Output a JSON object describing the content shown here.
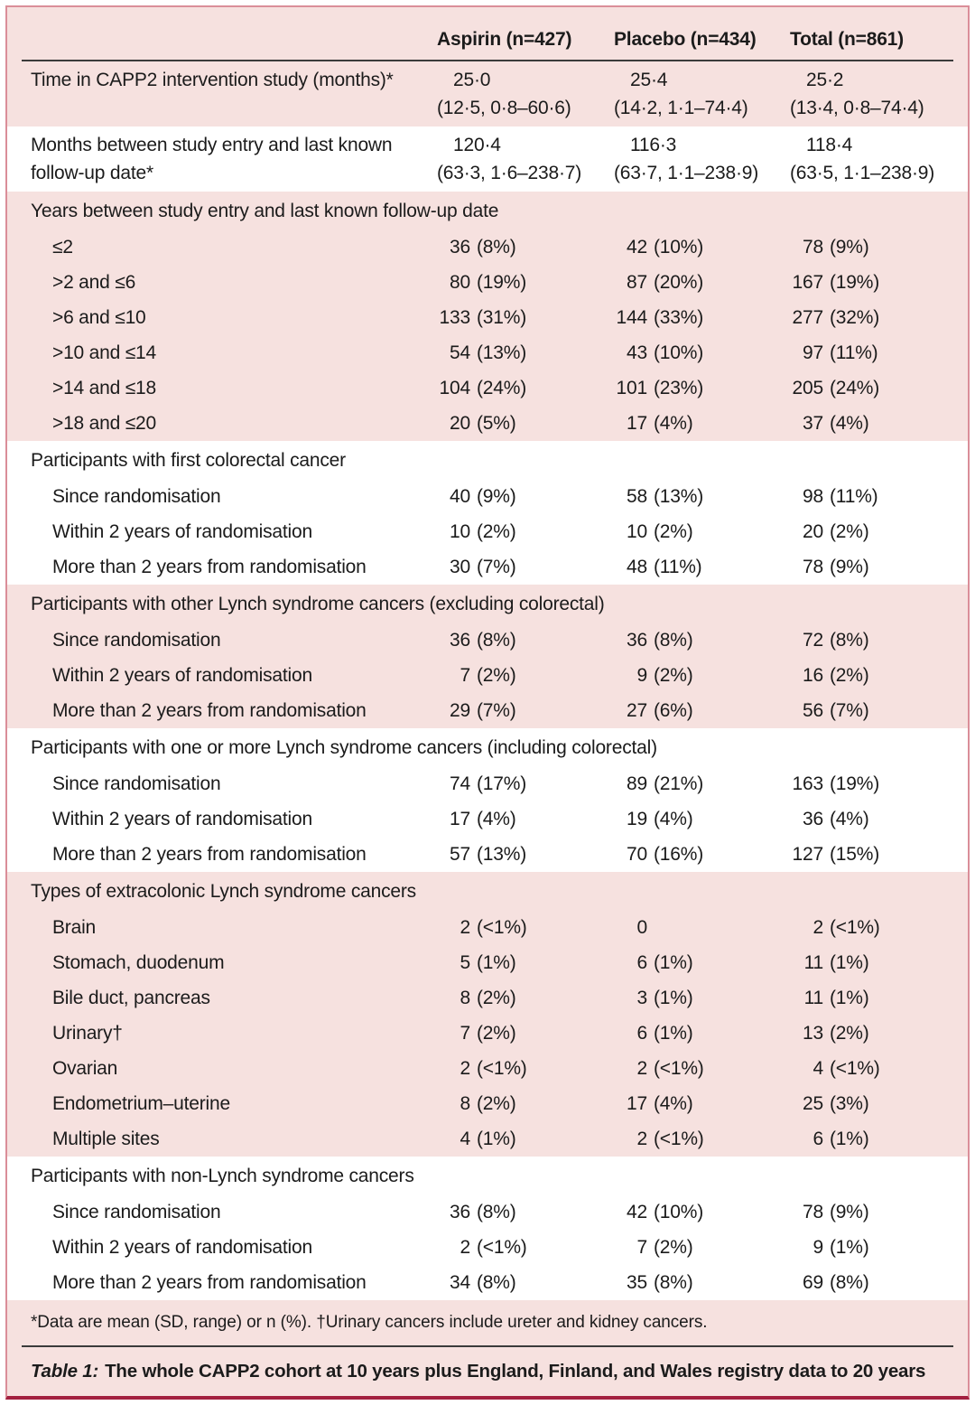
{
  "colors": {
    "table_background_pink": "#f6e1df",
    "row_band_white": "#ffffff",
    "outer_border_pink": "#da8e99",
    "bottom_accent_maroon": "#a3203f",
    "rule_dark": "#3b3b3b",
    "text": "#1b1b1b"
  },
  "table": {
    "columns": {
      "aspirin": "Aspirin (n=427)",
      "placebo": "Placebo (n=434)",
      "total": "Total (n=861)"
    },
    "rows": [
      {
        "kind": "measure",
        "shade": "pink",
        "label": "Time in CAPP2 intervention study (months)*",
        "cells": [
          {
            "num": "25·0",
            "rest": "(12·5, 0·8–60·6)"
          },
          {
            "num": "25·4",
            "rest": "(14·2, 1·1–74·4)"
          },
          {
            "num": "25·2",
            "rest": "(13·4, 0·8–74·4)"
          }
        ]
      },
      {
        "kind": "measure",
        "shade": "white",
        "label": "Months between study entry and last known follow-up date*",
        "cells": [
          {
            "num": "120·4",
            "rest": "(63·3, 1·6–238·7)"
          },
          {
            "num": "116·3",
            "rest": "(63·7, 1·1–238·9)"
          },
          {
            "num": "118·4",
            "rest": "(63·5, 1·1–238·9)"
          }
        ]
      },
      {
        "kind": "section",
        "shade": "pink",
        "label": "Years between study entry and last known follow-up date"
      },
      {
        "kind": "item",
        "shade": "pink",
        "label": "≤2",
        "cells": [
          {
            "num": "36",
            "rest": "(8%)"
          },
          {
            "num": "42",
            "rest": "(10%)"
          },
          {
            "num": "78",
            "rest": "(9%)"
          }
        ]
      },
      {
        "kind": "item",
        "shade": "pink",
        "label": ">2 and ≤6",
        "cells": [
          {
            "num": "80",
            "rest": "(19%)"
          },
          {
            "num": "87",
            "rest": "(20%)"
          },
          {
            "num": "167",
            "rest": "(19%)"
          }
        ]
      },
      {
        "kind": "item",
        "shade": "pink",
        "label": ">6 and ≤10",
        "cells": [
          {
            "num": "133",
            "rest": "(31%)"
          },
          {
            "num": "144",
            "rest": "(33%)"
          },
          {
            "num": "277",
            "rest": "(32%)"
          }
        ]
      },
      {
        "kind": "item",
        "shade": "pink",
        "label": ">10 and ≤14",
        "cells": [
          {
            "num": "54",
            "rest": "(13%)"
          },
          {
            "num": "43",
            "rest": "(10%)"
          },
          {
            "num": "97",
            "rest": "(11%)"
          }
        ]
      },
      {
        "kind": "item",
        "shade": "pink",
        "label": ">14 and ≤18",
        "cells": [
          {
            "num": "104",
            "rest": "(24%)"
          },
          {
            "num": "101",
            "rest": "(23%)"
          },
          {
            "num": "205",
            "rest": "(24%)"
          }
        ]
      },
      {
        "kind": "item",
        "shade": "pink",
        "label": ">18 and ≤20",
        "cells": [
          {
            "num": "20",
            "rest": "(5%)"
          },
          {
            "num": "17",
            "rest": "(4%)"
          },
          {
            "num": "37",
            "rest": "(4%)"
          }
        ]
      },
      {
        "kind": "section",
        "shade": "white",
        "label": "Participants with first colorectal cancer"
      },
      {
        "kind": "item",
        "shade": "white",
        "label": "Since randomisation",
        "cells": [
          {
            "num": "40",
            "rest": "(9%)"
          },
          {
            "num": "58",
            "rest": "(13%)"
          },
          {
            "num": "98",
            "rest": "(11%)"
          }
        ]
      },
      {
        "kind": "item",
        "shade": "white",
        "label": "Within 2 years of randomisation",
        "cells": [
          {
            "num": "10",
            "rest": "(2%)"
          },
          {
            "num": "10",
            "rest": "(2%)"
          },
          {
            "num": "20",
            "rest": "(2%)"
          }
        ]
      },
      {
        "kind": "item",
        "shade": "white",
        "label": "More than 2 years from randomisation",
        "cells": [
          {
            "num": "30",
            "rest": "(7%)"
          },
          {
            "num": "48",
            "rest": "(11%)"
          },
          {
            "num": "78",
            "rest": "(9%)"
          }
        ]
      },
      {
        "kind": "section",
        "shade": "pink",
        "label": "Participants with other Lynch syndrome cancers (excluding colorectal)"
      },
      {
        "kind": "item",
        "shade": "pink",
        "label": "Since randomisation",
        "cells": [
          {
            "num": "36",
            "rest": "(8%)"
          },
          {
            "num": "36",
            "rest": "(8%)"
          },
          {
            "num": "72",
            "rest": "(8%)"
          }
        ]
      },
      {
        "kind": "item",
        "shade": "pink",
        "label": "Within 2 years of randomisation",
        "cells": [
          {
            "num": "7",
            "rest": "(2%)"
          },
          {
            "num": "9",
            "rest": "(2%)"
          },
          {
            "num": "16",
            "rest": "(2%)"
          }
        ]
      },
      {
        "kind": "item",
        "shade": "pink",
        "label": "More than 2 years from randomisation",
        "cells": [
          {
            "num": "29",
            "rest": "(7%)"
          },
          {
            "num": "27",
            "rest": "(6%)"
          },
          {
            "num": "56",
            "rest": "(7%)"
          }
        ]
      },
      {
        "kind": "section",
        "shade": "white",
        "label": "Participants with one or more Lynch syndrome cancers (including colorectal)"
      },
      {
        "kind": "item",
        "shade": "white",
        "label": "Since randomisation",
        "cells": [
          {
            "num": "74",
            "rest": "(17%)"
          },
          {
            "num": "89",
            "rest": "(21%)"
          },
          {
            "num": "163",
            "rest": "(19%)"
          }
        ]
      },
      {
        "kind": "item",
        "shade": "white",
        "label": "Within 2 years of randomisation",
        "cells": [
          {
            "num": "17",
            "rest": "(4%)"
          },
          {
            "num": "19",
            "rest": "(4%)"
          },
          {
            "num": "36",
            "rest": "(4%)"
          }
        ]
      },
      {
        "kind": "item",
        "shade": "white",
        "label": "More than 2 years from randomisation",
        "cells": [
          {
            "num": "57",
            "rest": "(13%)"
          },
          {
            "num": "70",
            "rest": "(16%)"
          },
          {
            "num": "127",
            "rest": "(15%)"
          }
        ]
      },
      {
        "kind": "section",
        "shade": "pink",
        "label": "Types of extracolonic Lynch syndrome cancers"
      },
      {
        "kind": "item",
        "shade": "pink",
        "label": "Brain",
        "cells": [
          {
            "num": "2",
            "rest": "(<1%)"
          },
          {
            "num": "0",
            "rest": ""
          },
          {
            "num": "2",
            "rest": "(<1%)"
          }
        ]
      },
      {
        "kind": "item",
        "shade": "pink",
        "label": "Stomach, duodenum",
        "cells": [
          {
            "num": "5",
            "rest": "(1%)"
          },
          {
            "num": "6",
            "rest": "(1%)"
          },
          {
            "num": "11",
            "rest": "(1%)"
          }
        ]
      },
      {
        "kind": "item",
        "shade": "pink",
        "label": "Bile duct, pancreas",
        "cells": [
          {
            "num": "8",
            "rest": "(2%)"
          },
          {
            "num": "3",
            "rest": "(1%)"
          },
          {
            "num": "11",
            "rest": "(1%)"
          }
        ]
      },
      {
        "kind": "item",
        "shade": "pink",
        "label": "Urinary†",
        "cells": [
          {
            "num": "7",
            "rest": "(2%)"
          },
          {
            "num": "6",
            "rest": "(1%)"
          },
          {
            "num": "13",
            "rest": "(2%)"
          }
        ]
      },
      {
        "kind": "item",
        "shade": "pink",
        "label": "Ovarian",
        "cells": [
          {
            "num": "2",
            "rest": "(<1%)"
          },
          {
            "num": "2",
            "rest": "(<1%)"
          },
          {
            "num": "4",
            "rest": "(<1%)"
          }
        ]
      },
      {
        "kind": "item",
        "shade": "pink",
        "label": "Endometrium–uterine",
        "cells": [
          {
            "num": "8",
            "rest": "(2%)"
          },
          {
            "num": "17",
            "rest": "(4%)"
          },
          {
            "num": "25",
            "rest": "(3%)"
          }
        ]
      },
      {
        "kind": "item",
        "shade": "pink",
        "label": "Multiple sites",
        "cells": [
          {
            "num": "4",
            "rest": "(1%)"
          },
          {
            "num": "2",
            "rest": "(<1%)"
          },
          {
            "num": "6",
            "rest": "(1%)"
          }
        ]
      },
      {
        "kind": "section",
        "shade": "white",
        "label": "Participants with non-Lynch syndrome cancers"
      },
      {
        "kind": "item",
        "shade": "white",
        "label": "Since randomisation",
        "cells": [
          {
            "num": "36",
            "rest": "(8%)"
          },
          {
            "num": "42",
            "rest": "(10%)"
          },
          {
            "num": "78",
            "rest": "(9%)"
          }
        ]
      },
      {
        "kind": "item",
        "shade": "white",
        "label": "Within 2 years of randomisation",
        "cells": [
          {
            "num": "2",
            "rest": "(<1%)"
          },
          {
            "num": "7",
            "rest": "(2%)"
          },
          {
            "num": "9",
            "rest": "(1%)"
          }
        ]
      },
      {
        "kind": "item",
        "shade": "white",
        "label": "More than 2 years from randomisation",
        "cells": [
          {
            "num": "34",
            "rest": "(8%)"
          },
          {
            "num": "35",
            "rest": "(8%)"
          },
          {
            "num": "69",
            "rest": "(8%)"
          }
        ]
      }
    ],
    "footnote": "*Data are mean (SD, range) or n (%). †Urinary cancers include ureter and kidney cancers.",
    "caption": {
      "label": "Table 1:",
      "text": "The whole CAPP2 cohort at 10 years plus England, Finland, and Wales registry data to 20 years"
    }
  }
}
